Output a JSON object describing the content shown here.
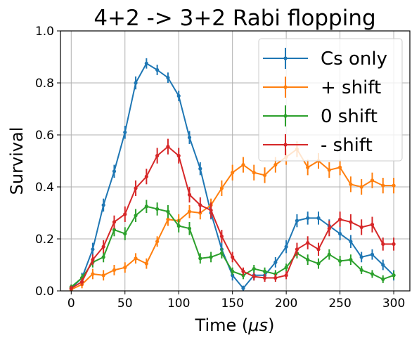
{
  "chart_data": {
    "type": "line",
    "title": "4+2 -> 3+2 Rabi flopping",
    "xlabel": "Time ($\\mu s$)",
    "xlabel_parts": [
      "Time (",
      "μs",
      ")"
    ],
    "ylabel": "Survival",
    "xlim": [
      -10,
      315
    ],
    "ylim": [
      0,
      1.0
    ],
    "xticks": [
      0,
      50,
      100,
      150,
      200,
      250,
      300
    ],
    "yticks": [
      0.0,
      0.2,
      0.4,
      0.6,
      0.8,
      1.0
    ],
    "xtick_labels": [
      "0",
      "50",
      "100",
      "150",
      "200",
      "250",
      "300"
    ],
    "ytick_labels": [
      "0.0",
      "0.2",
      "0.4",
      "0.6",
      "0.8",
      "1.0"
    ],
    "grid": true,
    "legend_position": "top-right",
    "x": [
      0,
      10,
      20,
      30,
      40,
      50,
      60,
      70,
      80,
      90,
      100,
      110,
      120,
      130,
      140,
      150,
      160,
      170,
      180,
      190,
      200,
      210,
      220,
      230,
      240,
      250,
      260,
      270,
      280,
      290,
      300
    ],
    "series": [
      {
        "name": "Cs only",
        "color": "#1f77b4",
        "values": [
          0.01,
          0.05,
          0.16,
          0.33,
          0.46,
          0.61,
          0.8,
          0.875,
          0.85,
          0.82,
          0.75,
          0.59,
          0.47,
          0.3,
          0.16,
          0.06,
          0.01,
          0.06,
          0.06,
          0.11,
          0.17,
          0.27,
          0.28,
          0.28,
          0.25,
          0.22,
          0.19,
          0.13,
          0.14,
          0.1,
          0.06
        ],
        "errors": [
          0.01,
          0.02,
          0.025,
          0.025,
          0.025,
          0.025,
          0.025,
          0.02,
          0.02,
          0.02,
          0.02,
          0.025,
          0.025,
          0.025,
          0.025,
          0.02,
          0.01,
          0.02,
          0.02,
          0.02,
          0.025,
          0.025,
          0.025,
          0.025,
          0.025,
          0.025,
          0.025,
          0.02,
          0.02,
          0.02,
          0.02
        ]
      },
      {
        "name": "+ shift",
        "color": "#ff7f0e",
        "values": [
          0.005,
          0.025,
          0.065,
          0.06,
          0.08,
          0.09,
          0.125,
          0.105,
          0.19,
          0.275,
          0.27,
          0.305,
          0.3,
          0.33,
          0.395,
          0.455,
          0.485,
          0.455,
          0.445,
          0.485,
          0.515,
          0.545,
          0.475,
          0.5,
          0.465,
          0.475,
          0.41,
          0.4,
          0.425,
          0.405,
          0.405
        ],
        "errors": [
          0.01,
          0.015,
          0.02,
          0.02,
          0.02,
          0.02,
          0.02,
          0.02,
          0.02,
          0.025,
          0.025,
          0.025,
          0.025,
          0.025,
          0.03,
          0.03,
          0.03,
          0.03,
          0.03,
          0.03,
          0.03,
          0.03,
          0.03,
          0.03,
          0.03,
          0.03,
          0.03,
          0.03,
          0.03,
          0.03,
          0.03
        ]
      },
      {
        "name": "0 shift",
        "color": "#2ca02c",
        "values": [
          0.015,
          0.05,
          0.11,
          0.13,
          0.235,
          0.22,
          0.29,
          0.325,
          0.315,
          0.305,
          0.25,
          0.24,
          0.125,
          0.13,
          0.145,
          0.075,
          0.06,
          0.085,
          0.075,
          0.065,
          0.09,
          0.145,
          0.12,
          0.105,
          0.14,
          0.115,
          0.12,
          0.08,
          0.065,
          0.045,
          0.06
        ],
        "errors": [
          0.01,
          0.015,
          0.02,
          0.02,
          0.025,
          0.025,
          0.025,
          0.025,
          0.025,
          0.025,
          0.025,
          0.025,
          0.02,
          0.02,
          0.02,
          0.015,
          0.015,
          0.015,
          0.015,
          0.015,
          0.015,
          0.02,
          0.02,
          0.02,
          0.02,
          0.02,
          0.02,
          0.015,
          0.015,
          0.015,
          0.015
        ]
      },
      {
        "name": "- shift",
        "color": "#d62728",
        "values": [
          0.01,
          0.035,
          0.12,
          0.17,
          0.265,
          0.295,
          0.395,
          0.44,
          0.52,
          0.555,
          0.52,
          0.37,
          0.33,
          0.31,
          0.21,
          0.13,
          0.075,
          0.055,
          0.05,
          0.05,
          0.06,
          0.16,
          0.185,
          0.16,
          0.24,
          0.275,
          0.265,
          0.245,
          0.255,
          0.18,
          0.18
        ],
        "errors": [
          0.01,
          0.015,
          0.02,
          0.025,
          0.025,
          0.03,
          0.03,
          0.03,
          0.03,
          0.03,
          0.03,
          0.03,
          0.03,
          0.03,
          0.025,
          0.02,
          0.015,
          0.015,
          0.015,
          0.015,
          0.015,
          0.025,
          0.025,
          0.025,
          0.03,
          0.03,
          0.03,
          0.03,
          0.03,
          0.025,
          0.025
        ]
      }
    ]
  }
}
